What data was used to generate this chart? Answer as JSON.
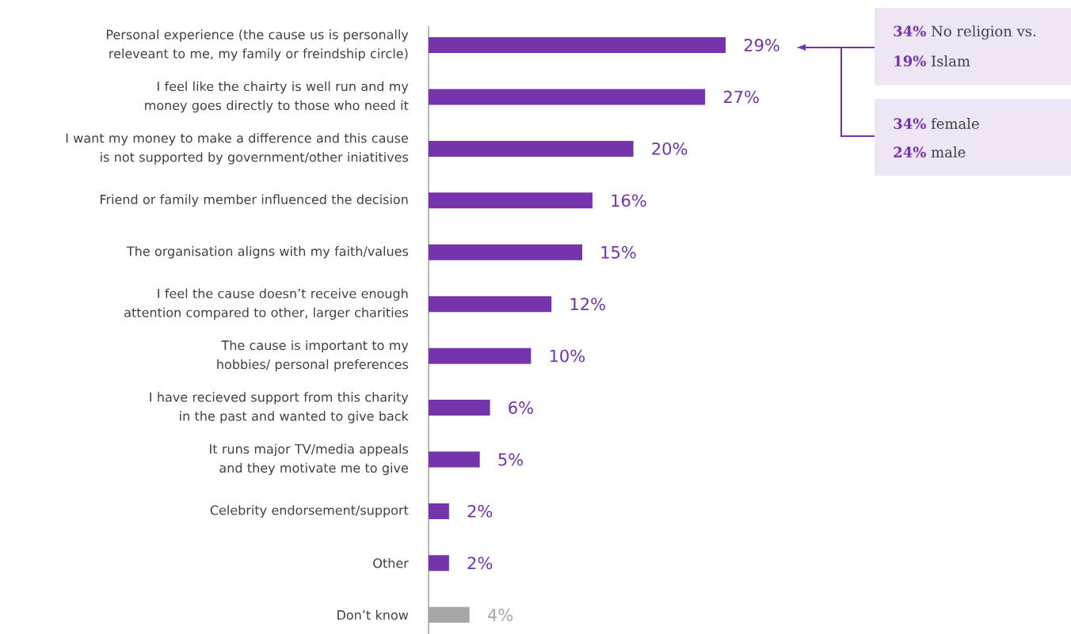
{
  "chart_data": {
    "type": "bar",
    "orientation": "horizontal",
    "categories": [
      "Personal experience (the cause us is personally releveant to me, my family or freindship circle)",
      "I feel like the chairty is well run and my money goes directly to those who need it",
      "I want my money to make a difference and this cause is not supported by government/other iniatitives",
      "Friend or family member influenced the decision",
      "The organisation aligns with my faith/values",
      "I feel the cause doesn’t  receive enough attention compared to other, larger charities",
      "The cause is important to my hobbies/ personal preferences",
      "I have recieved support from this charity in the past and wanted to give back",
      "It runs major TV/media appeals and they motivate me to give",
      "Celebrity endorsement/support",
      "Other",
      "Don’t know"
    ],
    "values": [
      29,
      27,
      20,
      16,
      15,
      12,
      10,
      6,
      5,
      2,
      2,
      4
    ],
    "value_labels": [
      "29%",
      "27%",
      "20%",
      "16%",
      "15%",
      "12%",
      "10%",
      "6%",
      "5%",
      "2%",
      "2%",
      "4%"
    ],
    "colors": [
      "#7533ac",
      "#7533ac",
      "#7533ac",
      "#7533ac",
      "#7533ac",
      "#7533ac",
      "#7533ac",
      "#7533ac",
      "#7533ac",
      "#7533ac",
      "#7533ac",
      "#a6a6a6"
    ],
    "annotations": [
      "**34%** No religion vs.",
      "**19%** Islam",
      "**34%** female",
      "**24%** male"
    ]
  }
}
